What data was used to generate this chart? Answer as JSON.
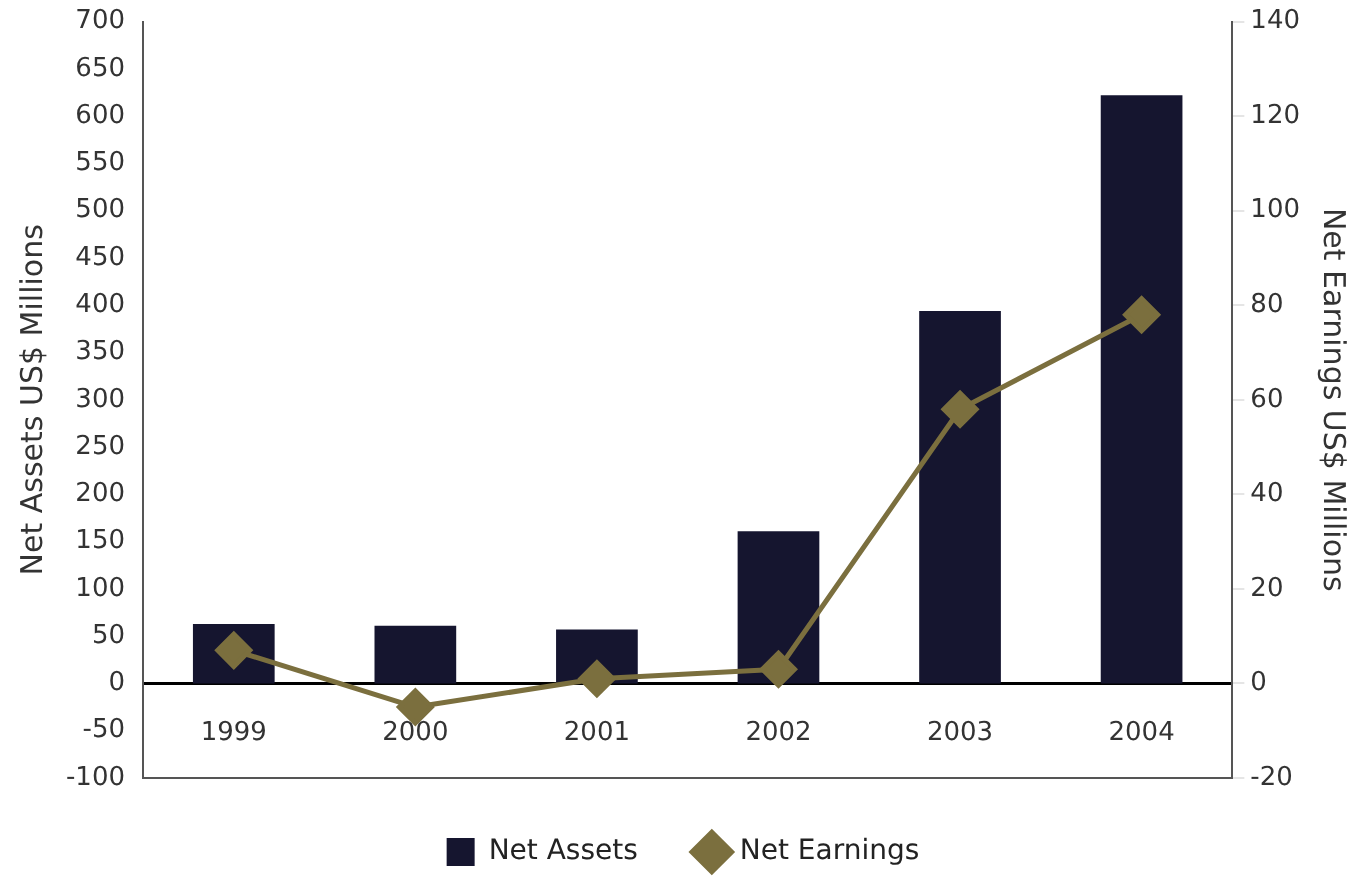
{
  "chart_data": {
    "type": "bar",
    "categories": [
      "1999",
      "2000",
      "2001",
      "2002",
      "2003",
      "2004"
    ],
    "ylabel": "Net Assets US$ Millions",
    "y2label": "Net Earnings US$ Millions",
    "ylim": [
      -100,
      700
    ],
    "yticks": [
      -100,
      -50,
      0,
      50,
      100,
      150,
      200,
      250,
      300,
      350,
      400,
      450,
      500,
      550,
      600,
      650,
      700
    ],
    "y2lim": [
      -20,
      140
    ],
    "y2ticks": [
      -20,
      0,
      20,
      40,
      60,
      80,
      100,
      120,
      140
    ],
    "series": [
      {
        "name": "Net Assets",
        "color": "#15152f",
        "values": [
          63,
          61,
          57,
          161,
          394,
          622
        ]
      },
      {
        "name": "Net Earnings",
        "type": "line",
        "axis": "y2",
        "color": "#7b6f3e",
        "marker": "diamond",
        "values": [
          7,
          -5,
          1,
          3,
          58,
          78
        ]
      }
    ],
    "legend": "bottom"
  }
}
